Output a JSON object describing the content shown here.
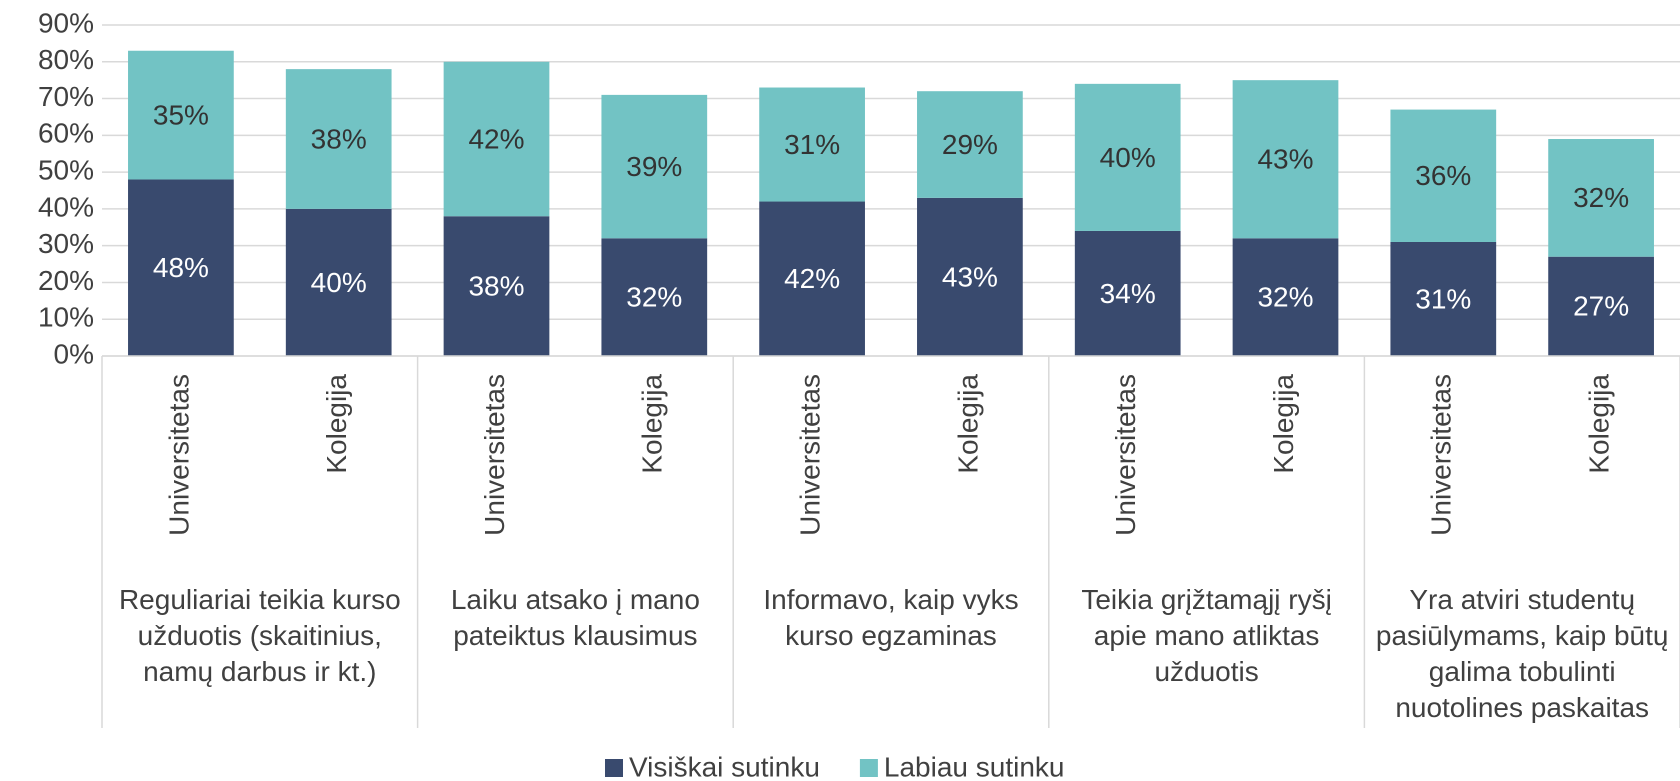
{
  "chart_data": {
    "type": "stacked_bar",
    "categories": [
      "Universitetas",
      "Kolegija",
      "Universitetas",
      "Kolegija",
      "Universitetas",
      "Kolegija",
      "Universitetas",
      "Kolegija",
      "Universitetas",
      "Kolegija"
    ],
    "groups": [
      "Reguliariai teikia kurso užduotis (skaitinius, namų darbus ir kt.)",
      "Laiku atsako į mano pateiktus klausimus",
      "Informavo, kaip vyks kurso egzaminas",
      "Teikia grįžtamąjį ryšį apie mano atliktas užduotis",
      "Yra atviri studentų pasiūlymams, kaip būtų galima tobulinti nuotolines paskaitas"
    ],
    "series": [
      {
        "name": "Visiškai sutinku",
        "color": "#394a6e",
        "label_color": "#ffffff",
        "values": [
          48,
          40,
          38,
          32,
          42,
          43,
          34,
          32,
          31,
          27
        ],
        "value_labels": [
          "48%",
          "40%",
          "38%",
          "32%",
          "42%",
          "43%",
          "34%",
          "32%",
          "31%",
          "27%"
        ]
      },
      {
        "name": "Labiau sutinku",
        "color": "#72c3c4",
        "label_color": "#333333",
        "values": [
          35,
          38,
          42,
          39,
          31,
          29,
          40,
          43,
          36,
          32
        ],
        "value_labels": [
          "35%",
          "38%",
          "42%",
          "39%",
          "31%",
          "29%",
          "40%",
          "43%",
          "36%",
          "32%"
        ]
      }
    ],
    "ylim": [
      0,
      90
    ],
    "yticks": [
      {
        "value": 0,
        "label": "0%"
      },
      {
        "value": 10,
        "label": "10%"
      },
      {
        "value": 20,
        "label": "20%"
      },
      {
        "value": 30,
        "label": "30%"
      },
      {
        "value": 40,
        "label": "40%"
      },
      {
        "value": 50,
        "label": "50%"
      },
      {
        "value": 60,
        "label": "60%"
      },
      {
        "value": 70,
        "label": "70%"
      },
      {
        "value": 80,
        "label": "80%"
      },
      {
        "value": 90,
        "label": "90%"
      }
    ],
    "grid": true,
    "legend": "bottom"
  }
}
